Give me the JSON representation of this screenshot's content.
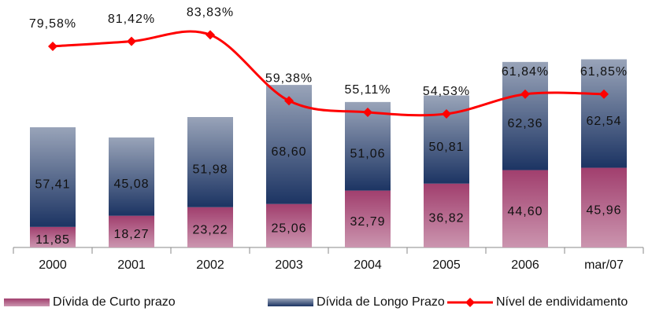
{
  "chart_data": {
    "type": "bar-line",
    "categories": [
      "2000",
      "2001",
      "2002",
      "2003",
      "2004",
      "2005",
      "2006",
      "mar/07"
    ],
    "ylim": [
      0,
      140
    ],
    "y2lim": [
      5,
      95
    ],
    "stacked": true,
    "legend": "bottom",
    "series": [
      {
        "name": "Dívida de Curto prazo",
        "type": "bar",
        "color": "#a13f6e",
        "values": [
          11.85,
          18.27,
          23.22,
          25.06,
          32.79,
          36.82,
          44.6,
          45.96
        ],
        "value_labels": [
          "11,85",
          "18,27",
          "23,22",
          "25,06",
          "32,79",
          "36,82",
          "44,60",
          "45,96"
        ]
      },
      {
        "name": "Dívida de Longo Prazo",
        "type": "bar",
        "color": "#1c3463",
        "values": [
          57.41,
          45.08,
          51.98,
          68.6,
          51.06,
          50.81,
          62.36,
          62.54
        ],
        "value_labels": [
          "57,41",
          "45,08",
          "51,98",
          "68,60",
          "51,06",
          "50,81",
          "62,36",
          "62,54"
        ]
      },
      {
        "name": "Nível de endividamento",
        "type": "line",
        "axis": "y2",
        "color": "#ff0000",
        "values": [
          79.58,
          81.42,
          83.83,
          59.38,
          55.11,
          54.53,
          61.84,
          61.85
        ],
        "value_labels": [
          "79,58%",
          "81,42%",
          "83,83%",
          "59,38%",
          "55,11%",
          "54,53%",
          "61,84%",
          "61,85%"
        ]
      }
    ]
  }
}
